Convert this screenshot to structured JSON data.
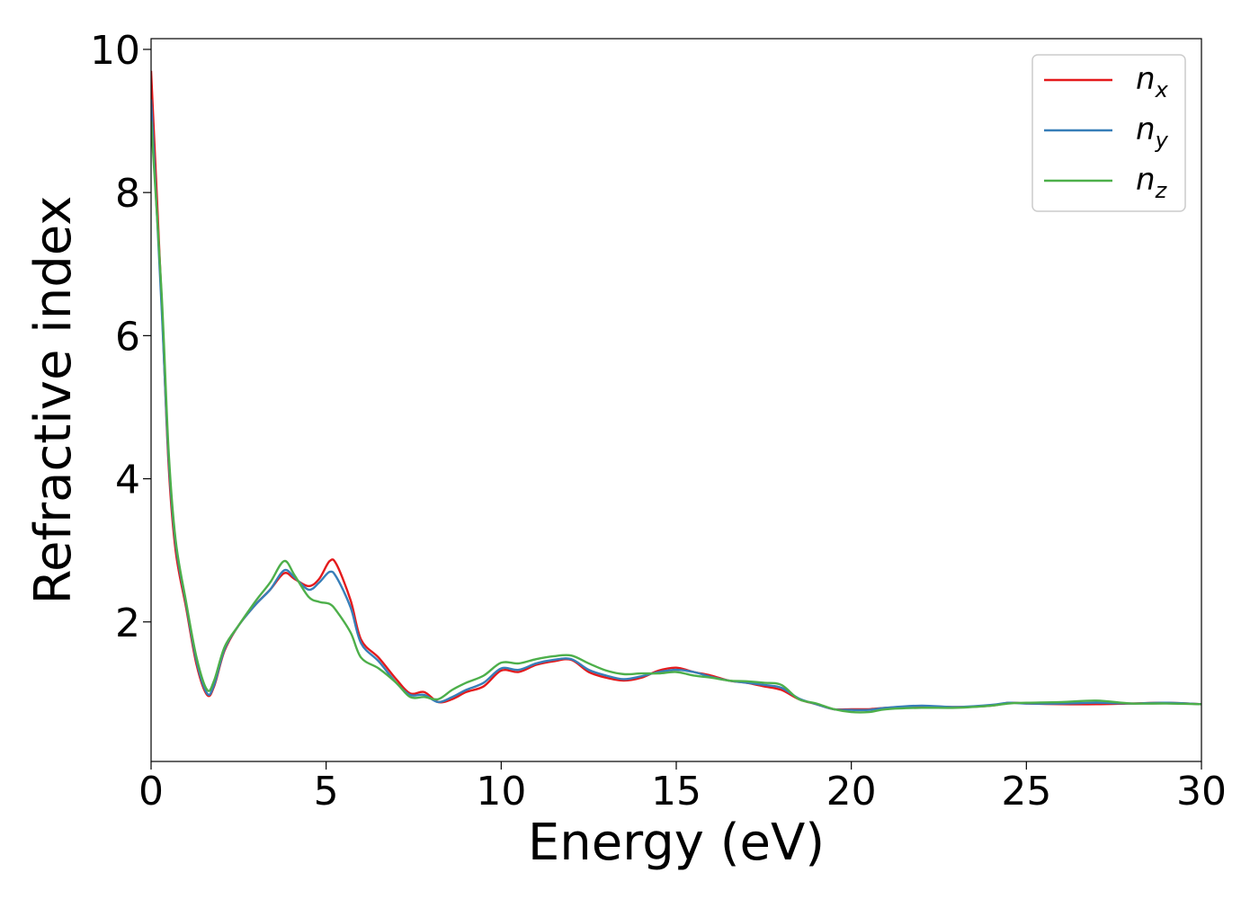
{
  "chart_data": {
    "type": "line",
    "xlabel": "Energy (eV)",
    "ylabel": "Refractive index",
    "xlim": [
      0,
      30
    ],
    "ylim": [
      0.05,
      10.15
    ],
    "xticks": [
      0,
      5,
      10,
      15,
      20,
      25,
      30
    ],
    "xtick_labels": [
      "0",
      "5",
      "10",
      "15",
      "20",
      "25",
      "30"
    ],
    "yticks": [
      2,
      4,
      6,
      8,
      10
    ],
    "ytick_labels": [
      "2",
      "4",
      "6",
      "8",
      "10"
    ],
    "grid": false,
    "legend_position": "top-right",
    "series": [
      {
        "name": "n_x",
        "label_base": "n",
        "label_sub": "x",
        "color": "#e41a1c",
        "points": [
          [
            0,
            9.7
          ],
          [
            0.3,
            6.5
          ],
          [
            0.5,
            4.2
          ],
          [
            0.7,
            3.0
          ],
          [
            1.0,
            2.2
          ],
          [
            1.3,
            1.4
          ],
          [
            1.6,
            0.98
          ],
          [
            1.8,
            1.1
          ],
          [
            2.1,
            1.6
          ],
          [
            2.5,
            1.95
          ],
          [
            3.0,
            2.25
          ],
          [
            3.4,
            2.45
          ],
          [
            3.8,
            2.68
          ],
          [
            4.1,
            2.6
          ],
          [
            4.5,
            2.5
          ],
          [
            4.8,
            2.6
          ],
          [
            5.1,
            2.85
          ],
          [
            5.3,
            2.8
          ],
          [
            5.7,
            2.3
          ],
          [
            6.0,
            1.75
          ],
          [
            6.5,
            1.5
          ],
          [
            7.0,
            1.2
          ],
          [
            7.4,
            1.0
          ],
          [
            7.8,
            1.02
          ],
          [
            8.2,
            0.88
          ],
          [
            8.6,
            0.92
          ],
          [
            9.0,
            1.02
          ],
          [
            9.5,
            1.1
          ],
          [
            10.0,
            1.32
          ],
          [
            10.5,
            1.3
          ],
          [
            11.0,
            1.4
          ],
          [
            11.5,
            1.45
          ],
          [
            12.0,
            1.47
          ],
          [
            12.5,
            1.3
          ],
          [
            13.0,
            1.22
          ],
          [
            13.5,
            1.18
          ],
          [
            14.0,
            1.22
          ],
          [
            14.5,
            1.32
          ],
          [
            15.0,
            1.36
          ],
          [
            15.5,
            1.3
          ],
          [
            16.0,
            1.25
          ],
          [
            16.5,
            1.18
          ],
          [
            17.0,
            1.15
          ],
          [
            17.5,
            1.1
          ],
          [
            18.0,
            1.05
          ],
          [
            18.5,
            0.92
          ],
          [
            19.0,
            0.85
          ],
          [
            19.5,
            0.78
          ],
          [
            20.0,
            0.78
          ],
          [
            20.5,
            0.78
          ],
          [
            21.0,
            0.8
          ],
          [
            22.0,
            0.82
          ],
          [
            23.0,
            0.81
          ],
          [
            24.0,
            0.83
          ],
          [
            24.5,
            0.87
          ],
          [
            25.0,
            0.86
          ],
          [
            26.0,
            0.85
          ],
          [
            27.0,
            0.85
          ],
          [
            28.0,
            0.86
          ],
          [
            29.0,
            0.87
          ],
          [
            30.0,
            0.85
          ]
        ]
      },
      {
        "name": "n_y",
        "label_base": "n",
        "label_sub": "y",
        "color": "#377eb8",
        "points": [
          [
            0,
            9.3
          ],
          [
            0.3,
            6.4
          ],
          [
            0.5,
            4.3
          ],
          [
            0.7,
            3.1
          ],
          [
            1.0,
            2.25
          ],
          [
            1.3,
            1.45
          ],
          [
            1.6,
            1.0
          ],
          [
            1.8,
            1.12
          ],
          [
            2.1,
            1.62
          ],
          [
            2.5,
            1.95
          ],
          [
            3.0,
            2.25
          ],
          [
            3.4,
            2.45
          ],
          [
            3.8,
            2.72
          ],
          [
            4.1,
            2.62
          ],
          [
            4.5,
            2.45
          ],
          [
            4.8,
            2.55
          ],
          [
            5.1,
            2.7
          ],
          [
            5.3,
            2.62
          ],
          [
            5.7,
            2.2
          ],
          [
            6.0,
            1.7
          ],
          [
            6.5,
            1.45
          ],
          [
            7.0,
            1.15
          ],
          [
            7.4,
            0.98
          ],
          [
            7.8,
            0.98
          ],
          [
            8.2,
            0.88
          ],
          [
            8.6,
            0.95
          ],
          [
            9.0,
            1.05
          ],
          [
            9.5,
            1.15
          ],
          [
            10.0,
            1.35
          ],
          [
            10.5,
            1.33
          ],
          [
            11.0,
            1.42
          ],
          [
            11.5,
            1.47
          ],
          [
            12.0,
            1.48
          ],
          [
            12.5,
            1.33
          ],
          [
            13.0,
            1.25
          ],
          [
            13.5,
            1.2
          ],
          [
            14.0,
            1.24
          ],
          [
            14.5,
            1.3
          ],
          [
            15.0,
            1.33
          ],
          [
            15.5,
            1.3
          ],
          [
            16.0,
            1.23
          ],
          [
            16.5,
            1.18
          ],
          [
            17.0,
            1.15
          ],
          [
            17.5,
            1.12
          ],
          [
            18.0,
            1.08
          ],
          [
            18.5,
            0.93
          ],
          [
            19.0,
            0.85
          ],
          [
            19.5,
            0.78
          ],
          [
            20.0,
            0.77
          ],
          [
            20.5,
            0.77
          ],
          [
            21.0,
            0.8
          ],
          [
            22.0,
            0.83
          ],
          [
            23.0,
            0.81
          ],
          [
            24.0,
            0.84
          ],
          [
            24.5,
            0.87
          ],
          [
            25.0,
            0.86
          ],
          [
            26.0,
            0.86
          ],
          [
            27.0,
            0.87
          ],
          [
            28.0,
            0.86
          ],
          [
            29.0,
            0.87
          ],
          [
            30.0,
            0.85
          ]
        ]
      },
      {
        "name": "n_z",
        "label_base": "n",
        "label_sub": "z",
        "color": "#4daf4a",
        "points": [
          [
            0,
            9.0
          ],
          [
            0.3,
            6.6
          ],
          [
            0.5,
            4.4
          ],
          [
            0.7,
            3.15
          ],
          [
            1.0,
            2.28
          ],
          [
            1.3,
            1.5
          ],
          [
            1.6,
            1.05
          ],
          [
            1.8,
            1.18
          ],
          [
            2.1,
            1.65
          ],
          [
            2.5,
            1.95
          ],
          [
            3.0,
            2.3
          ],
          [
            3.4,
            2.55
          ],
          [
            3.8,
            2.85
          ],
          [
            4.1,
            2.65
          ],
          [
            4.5,
            2.35
          ],
          [
            4.8,
            2.28
          ],
          [
            5.1,
            2.25
          ],
          [
            5.3,
            2.15
          ],
          [
            5.7,
            1.85
          ],
          [
            6.0,
            1.5
          ],
          [
            6.5,
            1.35
          ],
          [
            7.0,
            1.15
          ],
          [
            7.4,
            0.95
          ],
          [
            7.8,
            0.95
          ],
          [
            8.2,
            0.92
          ],
          [
            8.6,
            1.05
          ],
          [
            9.0,
            1.15
          ],
          [
            9.5,
            1.25
          ],
          [
            10.0,
            1.43
          ],
          [
            10.5,
            1.42
          ],
          [
            11.0,
            1.48
          ],
          [
            11.5,
            1.52
          ],
          [
            12.0,
            1.53
          ],
          [
            12.5,
            1.42
          ],
          [
            13.0,
            1.32
          ],
          [
            13.5,
            1.27
          ],
          [
            14.0,
            1.28
          ],
          [
            14.5,
            1.28
          ],
          [
            15.0,
            1.3
          ],
          [
            15.5,
            1.25
          ],
          [
            16.0,
            1.22
          ],
          [
            16.5,
            1.18
          ],
          [
            17.0,
            1.17
          ],
          [
            17.5,
            1.15
          ],
          [
            18.0,
            1.12
          ],
          [
            18.5,
            0.92
          ],
          [
            19.0,
            0.86
          ],
          [
            19.5,
            0.78
          ],
          [
            20.0,
            0.74
          ],
          [
            20.5,
            0.74
          ],
          [
            21.0,
            0.78
          ],
          [
            22.0,
            0.8
          ],
          [
            23.0,
            0.8
          ],
          [
            24.0,
            0.83
          ],
          [
            24.5,
            0.86
          ],
          [
            25.0,
            0.87
          ],
          [
            26.0,
            0.88
          ],
          [
            27.0,
            0.9
          ],
          [
            28.0,
            0.86
          ],
          [
            29.0,
            0.86
          ],
          [
            30.0,
            0.85
          ]
        ]
      }
    ]
  }
}
